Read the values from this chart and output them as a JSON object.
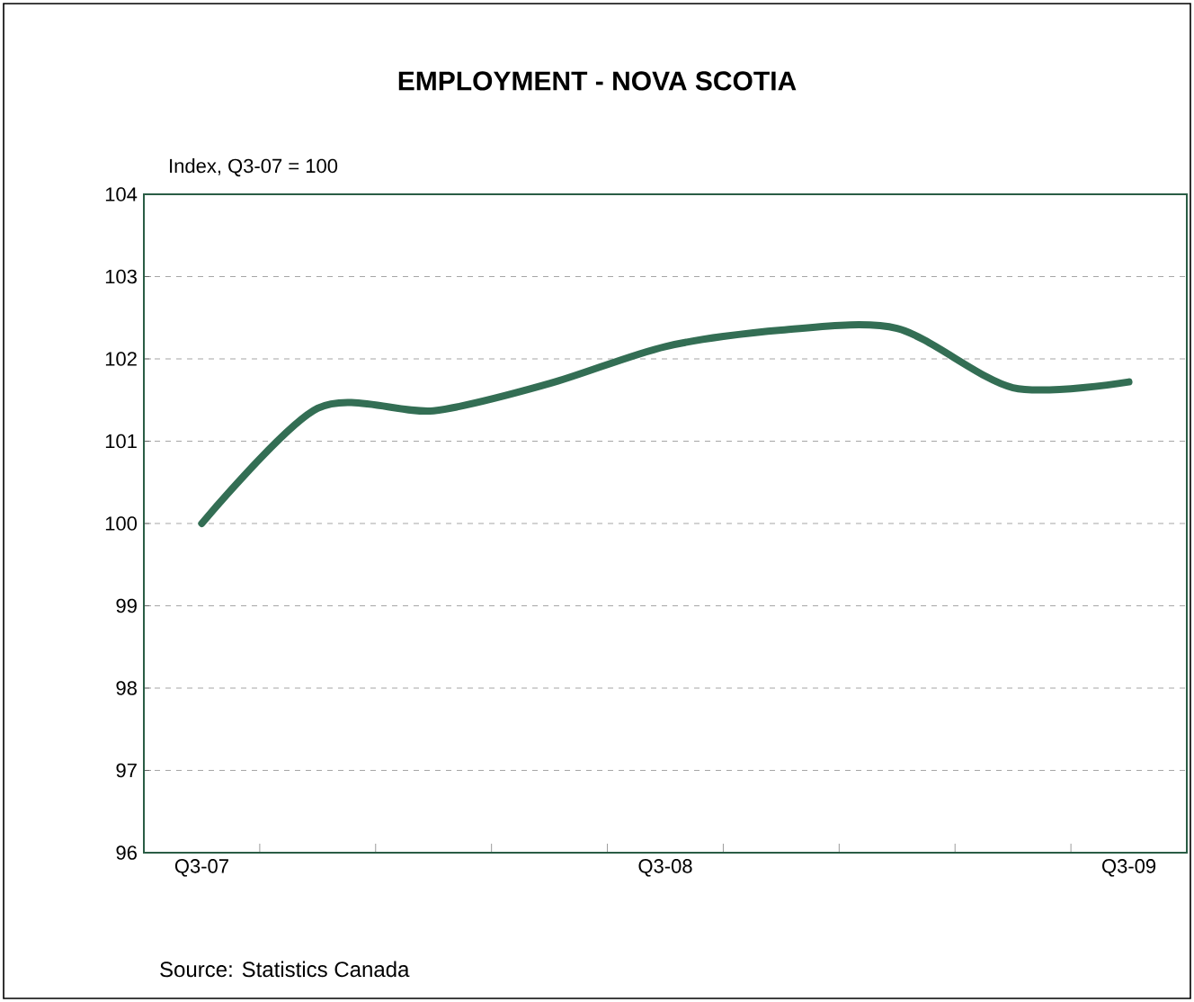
{
  "chart_data": {
    "type": "line",
    "title": "EMPLOYMENT - NOVA SCOTIA",
    "ylabel": "Index, Q3-07 = 100",
    "categories": [
      "Q3-07",
      null,
      null,
      null,
      "Q3-08",
      null,
      null,
      null,
      "Q3-09"
    ],
    "series": [
      {
        "color": "#336e54",
        "values": [
          100.0,
          101.4,
          101.37,
          101.7,
          102.15,
          102.35,
          102.37,
          101.65,
          101.72
        ]
      }
    ],
    "ylim": [
      96,
      104
    ],
    "yticks": [
      96,
      97,
      98,
      99,
      100,
      101,
      102,
      103,
      104
    ],
    "grid": "y",
    "marker": "none",
    "line_style": "solid",
    "annotations": [
      "Source: Statistics Canada"
    ]
  }
}
